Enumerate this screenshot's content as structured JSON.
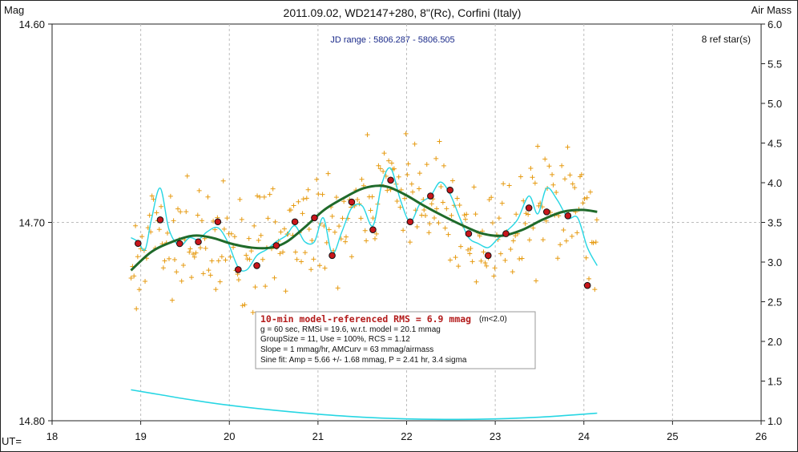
{
  "title": "2011.09.02, WD2147+280, 8\"(Rc), Corfini (Italy)",
  "left_axis_label": "Mag",
  "right_axis_label": "Air Mass",
  "x_axis_prefix": "UT=",
  "jd_range": "JD range : 5806.287 - 5806.505",
  "ref_stars": "8 ref star(s)",
  "info": {
    "rms_line": "10-min model-referenced RMS = 6.9 mmag",
    "rms_note": "(m<2.0)",
    "line2": "g = 60 sec, RMSi = 19.6, w.r.t. model = 20.1 mmag",
    "line3": "GroupSize = 11, Use = 100%, RCS = 1.12",
    "line4": "Slope = 1 mmag/hr, AMCurv = 63 mmag/airmass",
    "line5": "Sine fit: Amp = 5.66 +/- 1.68 mmag, P = 2.41 hr, 3.4 sigma"
  },
  "colors": {
    "points": "#e69b12",
    "binned_fill": "#c8161b",
    "model": "#1f6a2a",
    "smooth": "#27d6e3",
    "grid": "#bdbdbd"
  },
  "chart_data": {
    "type": "scatter",
    "x_ticks": [
      "18",
      "19",
      "20",
      "21",
      "22",
      "23",
      "24",
      "25",
      "26"
    ],
    "y_left_ticks": [
      "14.60",
      "14.70",
      "14.80"
    ],
    "y_right_ticks": [
      "1.0",
      "1.5",
      "2.0",
      "2.5",
      "3.0",
      "3.5",
      "4.0",
      "4.5",
      "5.0",
      "5.5",
      "6.0"
    ],
    "xlim": [
      18,
      26
    ],
    "ylim_mag": [
      14.6,
      14.8
    ],
    "ylim_airmass": [
      1.0,
      6.0
    ],
    "mag_axis_inverted": true,
    "grid": true,
    "series": [
      {
        "kind": "binned",
        "x": [
          18.97,
          19.22,
          19.44,
          19.65,
          19.87,
          20.1,
          20.31,
          20.53,
          20.74,
          20.96,
          21.16,
          21.38,
          21.62,
          21.82,
          22.04,
          22.27,
          22.49,
          22.7,
          22.92,
          23.12,
          23.38,
          23.58,
          23.82,
          24.04
        ],
        "y": [
          14.7106,
          14.6987,
          14.7107,
          14.7098,
          14.6997,
          14.7238,
          14.7218,
          14.7117,
          14.6997,
          14.6977,
          14.7167,
          14.6897,
          14.7037,
          14.6787,
          14.6997,
          14.6867,
          14.6837,
          14.7057,
          14.7167,
          14.7057,
          14.6927,
          14.6947,
          14.6967,
          14.7318
        ]
      },
      {
        "kind": "model",
        "x": [
          18.89,
          19.12,
          19.36,
          19.59,
          19.8,
          20.02,
          20.25,
          20.47,
          20.65,
          20.87,
          21.07,
          21.29,
          21.52,
          21.75,
          21.97,
          22.2,
          22.41,
          22.64,
          22.86,
          23.08,
          23.31,
          23.53,
          23.76,
          23.98,
          24.15
        ],
        "y": [
          14.7242,
          14.7149,
          14.7097,
          14.7067,
          14.7077,
          14.7107,
          14.7127,
          14.7127,
          14.7097,
          14.7017,
          14.6937,
          14.6877,
          14.6827,
          14.6817,
          14.6857,
          14.6917,
          14.6967,
          14.7017,
          14.7057,
          14.7067,
          14.7037,
          14.6987,
          14.6947,
          14.6937,
          14.6947
        ]
      },
      {
        "kind": "smooth",
        "x": [
          18.89,
          18.97,
          19.05,
          19.12,
          19.22,
          19.32,
          19.44,
          19.55,
          19.65,
          19.75,
          19.87,
          19.98,
          20.1,
          20.2,
          20.31,
          20.42,
          20.53,
          20.64,
          20.74,
          20.85,
          20.96,
          21.06,
          21.16,
          21.27,
          21.38,
          21.5,
          21.62,
          21.72,
          21.82,
          21.93,
          22.04,
          22.15,
          22.27,
          22.38,
          22.49,
          22.6,
          22.7,
          22.81,
          22.92,
          23.02,
          23.12,
          23.25,
          23.38,
          23.48,
          23.58,
          23.7,
          23.82,
          23.93,
          24.04,
          24.15
        ],
        "y": [
          14.7077,
          14.7097,
          14.7137,
          14.6987,
          14.6827,
          14.7037,
          14.7117,
          14.7077,
          14.7087,
          14.7047,
          14.7027,
          14.7097,
          14.7227,
          14.7238,
          14.7167,
          14.7137,
          14.7097,
          14.7067,
          14.7017,
          14.7097,
          14.7097,
          14.6977,
          14.7157,
          14.7047,
          14.6927,
          14.6917,
          14.7017,
          14.6807,
          14.6727,
          14.6887,
          14.6997,
          14.6907,
          14.6867,
          14.6797,
          14.6857,
          14.6977,
          14.7077,
          14.7107,
          14.7127,
          14.7087,
          14.7047,
          14.6987,
          14.6867,
          14.6957,
          14.6827,
          14.6887,
          14.6977,
          14.6977,
          14.7127,
          14.7218
        ]
      },
      {
        "kind": "airmass",
        "axis": "right",
        "x": [
          18.89,
          19.2,
          19.6,
          20.0,
          20.5,
          21.0,
          21.5,
          22.0,
          22.5,
          23.0,
          23.5,
          24.0,
          24.15
        ],
        "y": [
          1.39,
          1.332,
          1.258,
          1.195,
          1.133,
          1.083,
          1.045,
          1.023,
          1.017,
          1.023,
          1.045,
          1.083,
          1.096
        ]
      }
    ]
  }
}
